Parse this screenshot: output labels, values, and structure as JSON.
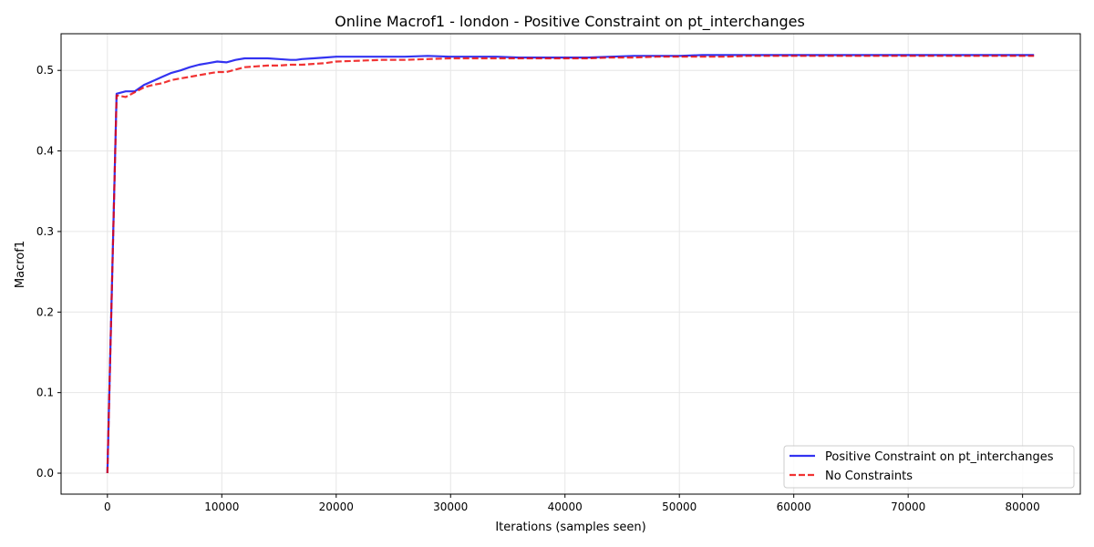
{
  "chart_data": {
    "type": "line",
    "title": "Online Macrof1 - london - Positive Constraint on pt_interchanges",
    "xlabel": "Iterations (samples seen)",
    "ylabel": "Macrof1",
    "xlim": [
      -4050,
      85050
    ],
    "ylim": [
      -0.026,
      0.5455
    ],
    "xticks": [
      0,
      10000,
      20000,
      30000,
      40000,
      50000,
      60000,
      70000,
      80000
    ],
    "xtick_labels": [
      "0",
      "10000",
      "20000",
      "30000",
      "40000",
      "50000",
      "60000",
      "70000",
      "80000"
    ],
    "yticks": [
      0.0,
      0.1,
      0.2,
      0.3,
      0.4,
      0.5
    ],
    "ytick_labels": [
      "0.0",
      "0.1",
      "0.2",
      "0.3",
      "0.4",
      "0.5"
    ],
    "grid": true,
    "legend_position": "lower-right",
    "series": [
      {
        "name": "Positive Constraint on pt_interchanges",
        "color": "#0000ee",
        "dash": "solid",
        "x": [
          0,
          800,
          1600,
          2400,
          3200,
          4000,
          4800,
          5600,
          6400,
          7200,
          8000,
          8800,
          9600,
          10400,
          11200,
          12000,
          13000,
          14000,
          15000,
          16000,
          16500,
          17000,
          18000,
          19000,
          20000,
          22000,
          24000,
          26000,
          28000,
          30000,
          32000,
          34000,
          36000,
          38000,
          40000,
          42000,
          44000,
          46000,
          48000,
          50000,
          52000,
          54000,
          56000,
          58000,
          60000,
          62000,
          64000,
          66000,
          68000,
          70000,
          72000,
          74000,
          76000,
          78000,
          80000,
          81000
        ],
        "y": [
          0.0,
          0.471,
          0.474,
          0.474,
          0.482,
          0.487,
          0.492,
          0.497,
          0.5,
          0.504,
          0.507,
          0.509,
          0.511,
          0.51,
          0.513,
          0.515,
          0.515,
          0.515,
          0.514,
          0.513,
          0.513,
          0.514,
          0.515,
          0.516,
          0.517,
          0.517,
          0.517,
          0.517,
          0.518,
          0.517,
          0.517,
          0.517,
          0.516,
          0.516,
          0.516,
          0.516,
          0.517,
          0.518,
          0.518,
          0.518,
          0.519,
          0.519,
          0.519,
          0.519,
          0.519,
          0.519,
          0.519,
          0.519,
          0.519,
          0.519,
          0.519,
          0.519,
          0.519,
          0.519,
          0.519,
          0.519
        ]
      },
      {
        "name": "No Constraints",
        "color": "#ee0000",
        "dash": "dashed",
        "x": [
          0,
          800,
          1600,
          2400,
          3200,
          4000,
          4800,
          5600,
          6400,
          7200,
          8000,
          8800,
          9600,
          10400,
          11200,
          12000,
          13000,
          14000,
          15000,
          16000,
          17000,
          18000,
          19000,
          20000,
          22000,
          24000,
          26000,
          28000,
          30000,
          32000,
          34000,
          36000,
          38000,
          40000,
          42000,
          44000,
          46000,
          48000,
          50000,
          52000,
          54000,
          56000,
          58000,
          60000,
          62000,
          64000,
          66000,
          68000,
          70000,
          72000,
          74000,
          76000,
          78000,
          80000,
          81000
        ],
        "y": [
          0.0,
          0.469,
          0.467,
          0.473,
          0.479,
          0.482,
          0.484,
          0.488,
          0.49,
          0.492,
          0.494,
          0.496,
          0.498,
          0.498,
          0.501,
          0.504,
          0.505,
          0.506,
          0.506,
          0.507,
          0.507,
          0.508,
          0.509,
          0.511,
          0.512,
          0.513,
          0.513,
          0.514,
          0.515,
          0.515,
          0.515,
          0.515,
          0.515,
          0.515,
          0.515,
          0.516,
          0.516,
          0.517,
          0.517,
          0.517,
          0.517,
          0.518,
          0.518,
          0.518,
          0.518,
          0.518,
          0.518,
          0.518,
          0.518,
          0.518,
          0.518,
          0.518,
          0.518,
          0.518,
          0.518
        ]
      }
    ]
  }
}
